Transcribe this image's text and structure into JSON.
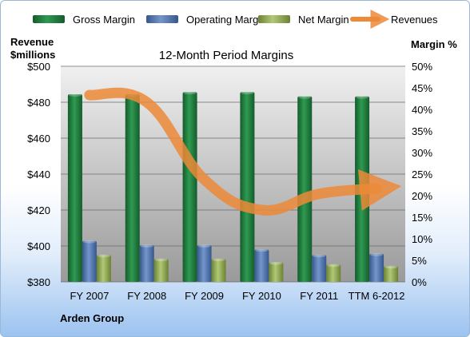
{
  "chart_data": {
    "type": "bar",
    "title": "12-Month Period Margins",
    "left_axis_title_line1": "Revenue",
    "left_axis_title_line2": "$millions",
    "right_axis_title": "Margin %",
    "company": "Arden Group",
    "categories": [
      "FY 2007",
      "FY 2008",
      "FY 2009",
      "FY 2010",
      "FY 2011",
      "TTM 6-2012"
    ],
    "left_axis": {
      "min": 380,
      "max": 500,
      "step": 20,
      "format": "$"
    },
    "right_axis": {
      "min": 0,
      "max": 50,
      "step": 5,
      "format": "%"
    },
    "series": [
      {
        "name": "Gross Margin",
        "axis": "right",
        "color": "#1f7a3c",
        "values": [
          43.5,
          43.5,
          44.0,
          44.0,
          43.0,
          43.0
        ]
      },
      {
        "name": "Operating Margin",
        "axis": "right",
        "color": "#4f77b5",
        "values": [
          9.5,
          8.5,
          8.5,
          7.5,
          6.2,
          6.5
        ]
      },
      {
        "name": "Net Margin",
        "axis": "right",
        "color": "#8faa4a",
        "values": [
          6.2,
          5.3,
          5.3,
          4.5,
          4.0,
          3.6
        ]
      },
      {
        "name": "Revenues",
        "axis": "left",
        "type": "line",
        "color": "#ec8a38",
        "values": [
          484,
          480,
          437,
          420,
          429,
          432
        ]
      }
    ],
    "grid": true,
    "legend_position": "top"
  }
}
